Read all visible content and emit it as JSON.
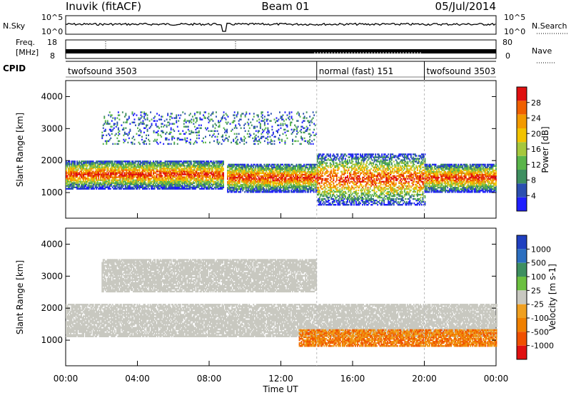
{
  "header": {
    "station": "Inuvik (fitACF)",
    "beam": "Beam 01",
    "date": "05/Jul/2014"
  },
  "strip_labels": {
    "nsky": "N.Sky",
    "nsky_top": "10^5",
    "nsky_bottom": "10^0",
    "nsearch": "N.Search",
    "nsearch_top": "10^5",
    "nsearch_bottom": "10^0",
    "freq_line1": "Freq.",
    "freq_line2": "[MHz]",
    "freq_top": "18",
    "freq_bottom": "8",
    "nave": "Nave",
    "nave_top": "80",
    "nave_bottom": "0",
    "cpid": "CPID"
  },
  "cpid_segments": [
    {
      "label": "twofsound 3503",
      "start_h": 0,
      "end_h": 14
    },
    {
      "label": "normal (fast) 151",
      "start_h": 14,
      "end_h": 20
    },
    {
      "label": "twofsound 3503",
      "start_h": 20,
      "end_h": 24
    }
  ],
  "colors": {
    "power": [
      "#1f1fff",
      "#2b4fb0",
      "#3e8f60",
      "#5ab54a",
      "#a6c83c",
      "#f2c300",
      "#f39a00",
      "#f06000",
      "#e01010"
    ],
    "velocity": [
      "#2040c0",
      "#2c6fc0",
      "#3e8f60",
      "#6cc040",
      "#c8c8c0",
      "#f0a020",
      "#f08000",
      "#f05000",
      "#e01010"
    ]
  },
  "chart_data": [
    {
      "type": "heatmap",
      "panel": "power",
      "xlabel": "Time UT",
      "ylabel": "Slant Range [km]",
      "xlim": [
        0,
        24
      ],
      "ylim": [
        200,
        4500
      ],
      "x_ticks": [
        "00:00",
        "04:00",
        "08:00",
        "12:00",
        "16:00",
        "20:00",
        "00:00"
      ],
      "y_ticks": [
        "1000",
        "2000",
        "3000",
        "4000"
      ],
      "colorbar_label": "Power [dB]",
      "colorbar_ticks": [
        "4",
        "8",
        "12",
        "16",
        "20",
        "24",
        "28"
      ],
      "bands": [
        {
          "t0": 0.0,
          "t1": 8.8,
          "r0": 1100,
          "r1": 2000,
          "level": "strong"
        },
        {
          "t0": 9.0,
          "t1": 14.0,
          "r0": 1000,
          "r1": 1900,
          "level": "strong"
        },
        {
          "t0": 14.0,
          "t1": 20.0,
          "r0": 600,
          "r1": 2200,
          "level": "patchy"
        },
        {
          "t0": 20.0,
          "t1": 24.0,
          "r0": 1000,
          "r1": 1900,
          "level": "strong"
        },
        {
          "t0": 2.0,
          "t1": 14.0,
          "r0": 2500,
          "r1": 3500,
          "level": "weak"
        }
      ]
    },
    {
      "type": "heatmap",
      "panel": "velocity",
      "xlabel": "Time UT",
      "ylabel": "Slant Range [km]",
      "xlim": [
        0,
        24
      ],
      "ylim": [
        200,
        4500
      ],
      "x_ticks": [
        "00:00",
        "04:00",
        "08:00",
        "12:00",
        "16:00",
        "20:00",
        "00:00"
      ],
      "y_ticks": [
        "1000",
        "2000",
        "3000",
        "4000"
      ],
      "colorbar_label": "Velocity [m s-1]",
      "colorbar_ticks": [
        "1000",
        "500",
        "100",
        "25",
        "-25",
        "-100",
        "-500",
        "-1000"
      ],
      "bands": [
        {
          "t0": 0.0,
          "t1": 24.0,
          "r0": 1100,
          "r1": 2100,
          "level": "ground-scatter"
        },
        {
          "t0": 13.0,
          "t1": 24.0,
          "r0": 800,
          "r1": 1300,
          "level": "negative"
        },
        {
          "t0": 2.0,
          "t1": 14.0,
          "r0": 2500,
          "r1": 3500,
          "level": "ground-scatter"
        }
      ]
    }
  ]
}
